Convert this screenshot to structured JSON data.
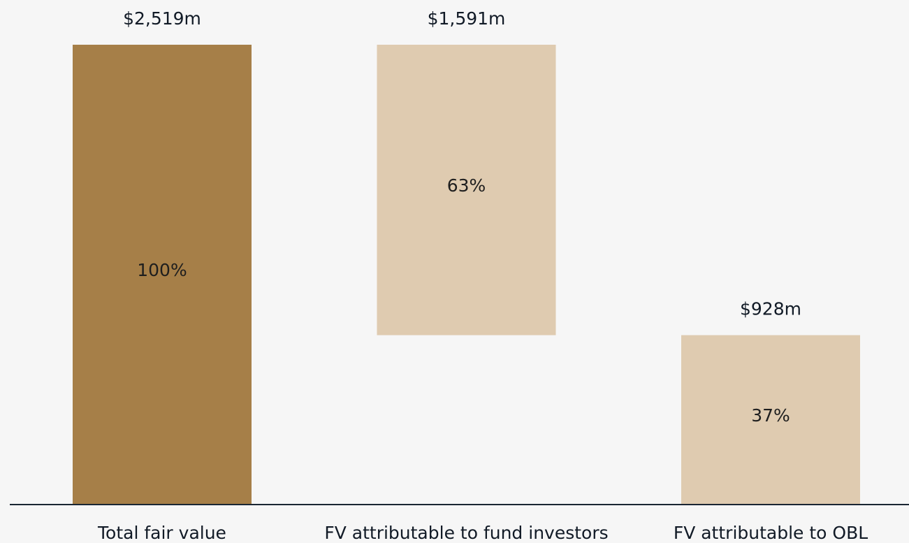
{
  "chart_data": {
    "type": "waterfall",
    "categories": [
      "Total fair value",
      "FV attributable to fund investors",
      "FV attributable to OBL"
    ],
    "values": [
      2519,
      1591,
      928
    ],
    "value_labels": [
      "$2,519m",
      "$1,591m",
      "$928m"
    ],
    "share_labels": [
      "100%",
      "63%",
      "37%"
    ],
    "colors": [
      "#a67f48",
      "#dfcbb0",
      "#dfcbb0"
    ]
  }
}
